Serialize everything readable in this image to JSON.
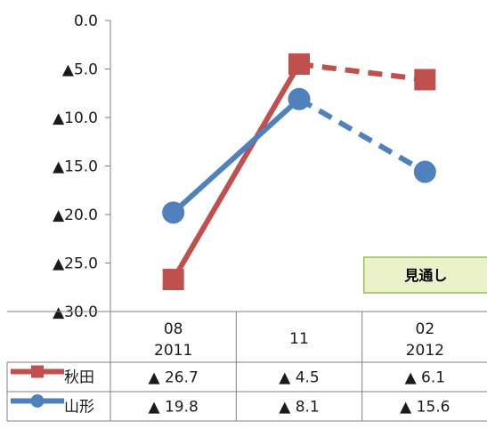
{
  "chart_data": {
    "type": "line",
    "categories": [
      {
        "top": "08",
        "bottom": "2011"
      },
      {
        "top": "11",
        "bottom": ""
      },
      {
        "top": "02",
        "bottom": "2012"
      }
    ],
    "y_axis": {
      "ylim": [
        -30,
        0
      ],
      "ticks": [
        {
          "value": 0,
          "label": "0.0"
        },
        {
          "value": -5,
          "label": "▲5.0"
        },
        {
          "value": -10,
          "label": "▲10.0"
        },
        {
          "value": -15,
          "label": "▲15.0"
        },
        {
          "value": -20,
          "label": "▲20.0"
        },
        {
          "value": -25,
          "label": "▲25.0"
        },
        {
          "value": -30,
          "label": "▲30.0"
        }
      ]
    },
    "grid": false,
    "forecast_badge": "見通し",
    "forecast_from_index": 1,
    "series": [
      {
        "name": "秋田",
        "color": "#c0504d",
        "marker": "square",
        "values": [
          -26.7,
          -4.5,
          -6.1
        ],
        "labels": [
          "▲ 26.7",
          "▲ 4.5",
          "▲ 6.1"
        ]
      },
      {
        "name": "山形",
        "color": "#4f81bd",
        "marker": "circle",
        "values": [
          -19.8,
          -8.1,
          -15.6
        ],
        "labels": [
          "▲ 19.8",
          "▲ 8.1",
          "▲ 15.6"
        ]
      }
    ]
  }
}
